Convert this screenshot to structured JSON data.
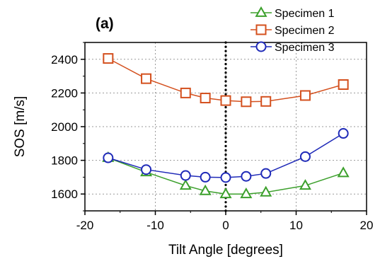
{
  "chart_data": {
    "type": "line",
    "panel_label": "(a)",
    "xlabel": "Tilt Angle [degrees]",
    "ylabel": "SOS [m/s]",
    "xlim": [
      -20,
      20
    ],
    "ylim": [
      1500,
      2500
    ],
    "xticks": [
      -20,
      -10,
      0,
      10,
      20
    ],
    "yticks": [
      1600,
      1800,
      2000,
      2200,
      2400
    ],
    "grid": true,
    "legend_position": "top-right",
    "reference_line": {
      "x": 0,
      "style": "dotted",
      "color": "#000000"
    },
    "series": [
      {
        "name": "Specimen 1",
        "marker": "triangle",
        "color": "#3ca02c",
        "x": [
          -16.7,
          -11.3,
          -5.7,
          -2.9,
          0,
          2.9,
          5.7,
          11.3,
          16.7
        ],
        "y": [
          1815,
          1730,
          1650,
          1618,
          1600,
          1600,
          1610,
          1650,
          1725
        ]
      },
      {
        "name": "Specimen 2",
        "marker": "square",
        "color": "#d4501e",
        "x": [
          -16.7,
          -11.3,
          -5.7,
          -2.9,
          0,
          2.9,
          5.7,
          11.3,
          16.7
        ],
        "y": [
          2405,
          2285,
          2200,
          2170,
          2155,
          2148,
          2150,
          2185,
          2250
        ]
      },
      {
        "name": "Specimen 3",
        "marker": "circle",
        "color": "#1f2ab8",
        "x": [
          -16.7,
          -11.3,
          -5.7,
          -2.9,
          0,
          2.9,
          5.7,
          11.3,
          16.7
        ],
        "y": [
          1815,
          1745,
          1710,
          1700,
          1698,
          1705,
          1722,
          1822,
          1960
        ]
      }
    ]
  }
}
